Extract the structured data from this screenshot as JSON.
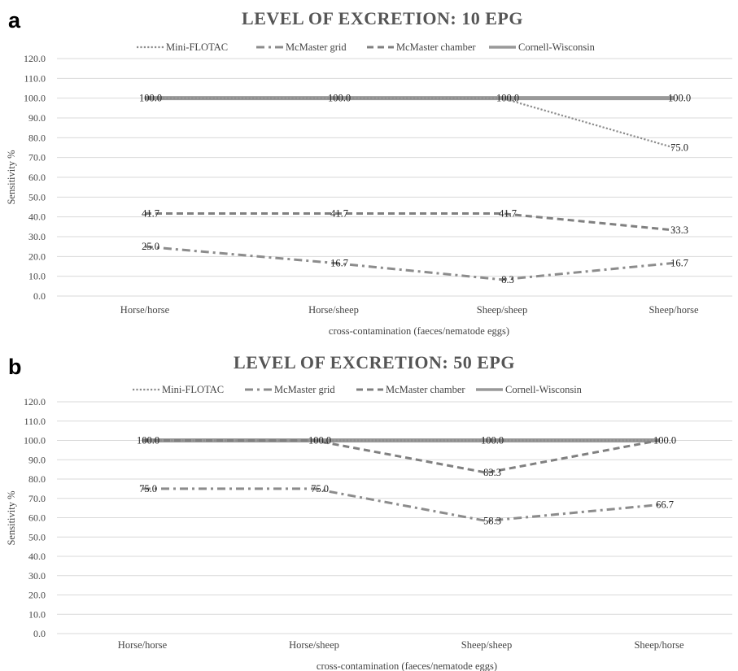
{
  "chart_data": [
    {
      "type": "line",
      "panel": "a",
      "title": "LEVEL OF EXCRETION: 10 EPG",
      "xlabel": "cross-contamination (faeces/nematode eggs)",
      "ylabel": "Sensitivity %",
      "ylim": [
        0,
        120
      ],
      "yticks": [
        "0.0",
        "10.0",
        "20.0",
        "30.0",
        "40.0",
        "50.0",
        "60.0",
        "70.0",
        "80.0",
        "90.0",
        "100.0",
        "110.0",
        "120.0"
      ],
      "grid": true,
      "legend_position": "top",
      "categories": [
        "Horse/horse",
        "Horse/sheep",
        "Sheep/sheep",
        "Sheep/horse"
      ],
      "series": [
        {
          "name": "Mini-FLOTAC",
          "style": "dotted",
          "color": "#8c8c8c",
          "values": [
            100.0,
            100.0,
            100.0,
            75.0
          ]
        },
        {
          "name": "McMaster grid",
          "style": "dashdot",
          "color": "#8c8c8c",
          "values": [
            25.0,
            16.7,
            8.3,
            16.7
          ]
        },
        {
          "name": "McMaster chamber",
          "style": "dashed",
          "color": "#808080",
          "values": [
            41.7,
            41.7,
            41.7,
            33.3
          ]
        },
        {
          "name": "Cornell-Wisconsin",
          "style": "solid",
          "color": "#999999",
          "values": [
            100.0,
            100.0,
            100.0,
            100.0
          ]
        }
      ],
      "data_labels": [
        {
          "series": 0,
          "labels": [
            "",
            "",
            "",
            "75.0"
          ]
        },
        {
          "series": 1,
          "labels": [
            "25.0",
            "16.7",
            "8.3",
            "16.7"
          ]
        },
        {
          "series": 2,
          "labels": [
            "41.7",
            "41.7",
            "41.7",
            "33.3"
          ]
        },
        {
          "series": 3,
          "labels": [
            "100.0",
            "100.0",
            "100.0",
            "100.0"
          ]
        }
      ]
    },
    {
      "type": "line",
      "panel": "b",
      "title": "LEVEL OF EXCRETION: 50 EPG",
      "xlabel": "cross-contamination (faeces/nematode eggs)",
      "ylabel": "Sensitivity %",
      "ylim": [
        0,
        120
      ],
      "yticks": [
        "0.0",
        "10.0",
        "20.0",
        "30.0",
        "40.0",
        "50.0",
        "60.0",
        "70.0",
        "80.0",
        "90.0",
        "100.0",
        "110.0",
        "120.0"
      ],
      "grid": true,
      "legend_position": "top",
      "categories": [
        "Horse/horse",
        "Horse/sheep",
        "Sheep/sheep",
        "Sheep/horse"
      ],
      "series": [
        {
          "name": "Mini-FLOTAC",
          "style": "dotted",
          "color": "#8c8c8c",
          "values": [
            100.0,
            100.0,
            100.0,
            100.0
          ]
        },
        {
          "name": "McMaster grid",
          "style": "dashdot",
          "color": "#8c8c8c",
          "values": [
            75.0,
            75.0,
            58.3,
            66.7
          ]
        },
        {
          "name": "McMaster chamber",
          "style": "dashed",
          "color": "#808080",
          "values": [
            100.0,
            100.0,
            83.3,
            100.0
          ]
        },
        {
          "name": "Cornell-Wisconsin",
          "style": "solid",
          "color": "#999999",
          "values": [
            100.0,
            100.0,
            100.0,
            100.0
          ]
        }
      ],
      "data_labels": [
        {
          "series": 1,
          "labels": [
            "75.0",
            "75.0",
            "58.3",
            "66.7"
          ]
        },
        {
          "series": 2,
          "labels": [
            "",
            "",
            "83.3",
            ""
          ]
        },
        {
          "series": 3,
          "labels": [
            "100.0",
            "100.0",
            "100.0",
            "100.0"
          ]
        }
      ]
    }
  ]
}
